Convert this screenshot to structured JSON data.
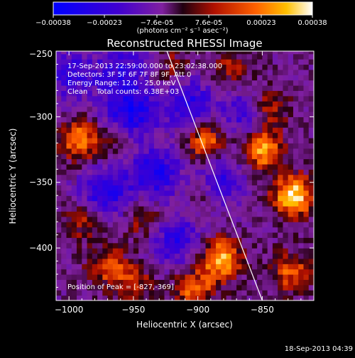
{
  "colorbar": {
    "tick_labels": [
      "-0.00038",
      "-0.00023",
      "-7.6e-05",
      "7.6e-05",
      "0.00023",
      "0.00038"
    ],
    "tick_values": [
      -0.00038,
      -0.00023,
      -7.6e-05,
      7.6e-05,
      0.00023,
      0.00038
    ],
    "range": [
      -0.00038,
      0.00038
    ],
    "unit_label": "(photons cm⁻² s⁻¹ asec⁻²)"
  },
  "chart_data": {
    "type": "heatmap",
    "title": "Reconstructed RHESSI Image",
    "xlabel": "Heliocentric X (arcsec)",
    "ylabel": "Heliocentric Y (arcsec)",
    "xlim": [
      -1010,
      -810
    ],
    "ylim": [
      -440,
      -250
    ],
    "x_ticks": [
      -1000,
      -950,
      -900,
      -850
    ],
    "x_tick_labels": [
      "-1000",
      "-950",
      "-900",
      "-850"
    ],
    "y_ticks": [
      -300,
      -350,
      -400
    ],
    "y_tick_labels": [
      "-300",
      "-350",
      "-400"
    ],
    "annotations": [
      "17-Sep-2013 22:59:00.000 to 23:02:38.000",
      "Detectors: 3F 5F 6F 7F 8F 9F, Att 0",
      "Energy Range: 12.0 - 25.0 keV",
      "Clean    Total counts: 6.38E+03"
    ],
    "peak_label": "Position of Peak = [-827,-369]",
    "peak_position": [
      -827,
      -369
    ],
    "limb_line": [
      [
        -924,
        -250
      ],
      [
        -850,
        -440
      ]
    ],
    "colormap": [
      "#0000ff",
      "#6000b0",
      "#8020a0",
      "#400020",
      "#c01000",
      "#ff6000",
      "#ffc000",
      "#ffffff"
    ],
    "hotspots": [
      {
        "x": -828,
        "y": -362,
        "amp": 1.0
      },
      {
        "x": -852,
        "y": -327,
        "amp": 0.85
      },
      {
        "x": -884,
        "y": -410,
        "amp": 0.85
      },
      {
        "x": -895,
        "y": -322,
        "amp": 0.7
      },
      {
        "x": -993,
        "y": -320,
        "amp": 0.7
      },
      {
        "x": -848,
        "y": -295,
        "amp": 0.55
      },
      {
        "x": -905,
        "y": -433,
        "amp": 0.6
      },
      {
        "x": -830,
        "y": -420,
        "amp": 0.55
      },
      {
        "x": -990,
        "y": -380,
        "amp": 0.45
      },
      {
        "x": -942,
        "y": -380,
        "amp": 0.45
      },
      {
        "x": -972,
        "y": -415,
        "amp": 0.5
      },
      {
        "x": -922,
        "y": -265,
        "amp": 0.35
      },
      {
        "x": -962,
        "y": -318,
        "amp": 0.35
      },
      {
        "x": -878,
        "y": -265,
        "amp": 0.35
      },
      {
        "x": -898,
        "y": -360,
        "amp": 0.3
      },
      {
        "x": -952,
        "y": -430,
        "amp": 0.45
      }
    ],
    "coldspots": [
      {
        "x": -955,
        "y": -300,
        "amp": 0.8
      },
      {
        "x": -935,
        "y": -345,
        "amp": 0.7
      },
      {
        "x": -910,
        "y": -290,
        "amp": 0.6
      },
      {
        "x": -885,
        "y": -350,
        "amp": 0.6
      },
      {
        "x": -975,
        "y": -360,
        "amp": 0.7
      },
      {
        "x": -920,
        "y": -395,
        "amp": 0.6
      },
      {
        "x": -1000,
        "y": -270,
        "amp": 0.5
      },
      {
        "x": -865,
        "y": -300,
        "amp": 0.5
      },
      {
        "x": -960,
        "y": -265,
        "amp": 0.5
      }
    ]
  },
  "footer": {
    "timestamp": "18-Sep-2013 04:39"
  }
}
